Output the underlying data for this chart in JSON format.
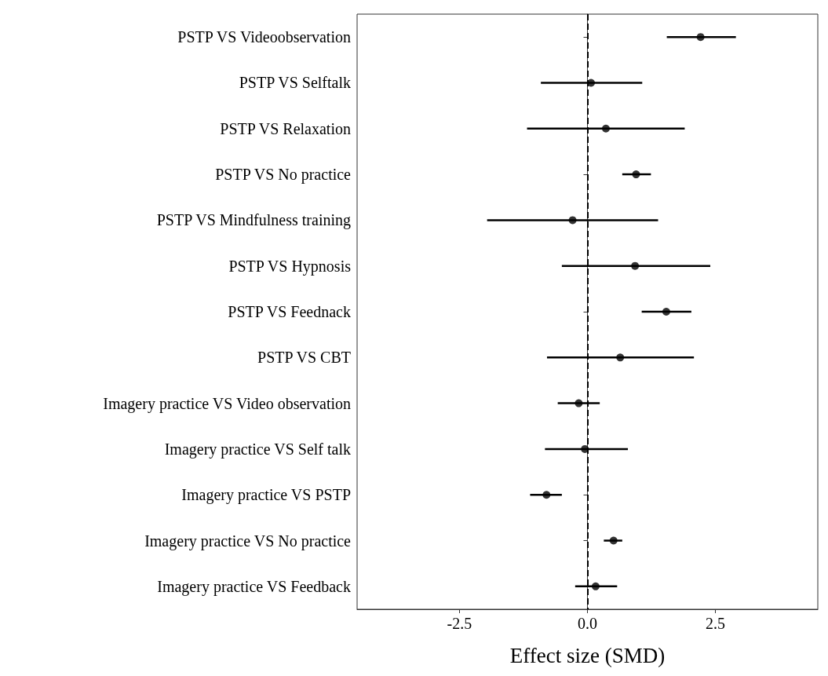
{
  "chart_data": {
    "type": "scatter",
    "orientation": "horizontal",
    "xlabel": "Effect size (SMD)",
    "categories": [
      "PSTP VS Videoobservation",
      "PSTP VS Selftalk",
      "PSTP VS Relaxation",
      "PSTP VS No practice",
      "PSTP VS Mindfulness training",
      "PSTP VS Hypnosis",
      "PSTP VS Feednack",
      "PSTP VS CBT",
      "Imagery practice VS Video observation",
      "Imagery practice VS Self talk",
      "Imagery practice VS PSTP",
      "Imagery practice VS No practice",
      "Imagery practice VS Feedback"
    ],
    "values": [
      2.21,
      0.07,
      0.36,
      0.95,
      -0.29,
      0.93,
      1.54,
      0.64,
      -0.17,
      -0.05,
      -0.8,
      0.51,
      0.16
    ],
    "errors": [
      [
        1.55,
        2.9
      ],
      [
        -0.91,
        1.07
      ],
      [
        -1.18,
        1.9
      ],
      [
        0.68,
        1.24
      ],
      [
        -1.96,
        1.38
      ],
      [
        -0.5,
        2.4
      ],
      [
        1.06,
        2.03
      ],
      [
        -0.79,
        2.08
      ],
      [
        -0.58,
        0.24
      ],
      [
        -0.83,
        0.79
      ],
      [
        -1.12,
        -0.5
      ],
      [
        0.32,
        0.68
      ],
      [
        -0.24,
        0.58
      ]
    ],
    "color": "#000000",
    "xlim": [
      -4.5,
      4.5
    ],
    "xticks": [
      -2.5,
      {
        "value": 0,
        "label": "0.0"
      },
      2.5
    ],
    "ref_lines": [
      {
        "axis": "x",
        "value": 0,
        "line_style": "dashed",
        "color": "#000000"
      }
    ],
    "grid": false,
    "marker": "circle"
  }
}
